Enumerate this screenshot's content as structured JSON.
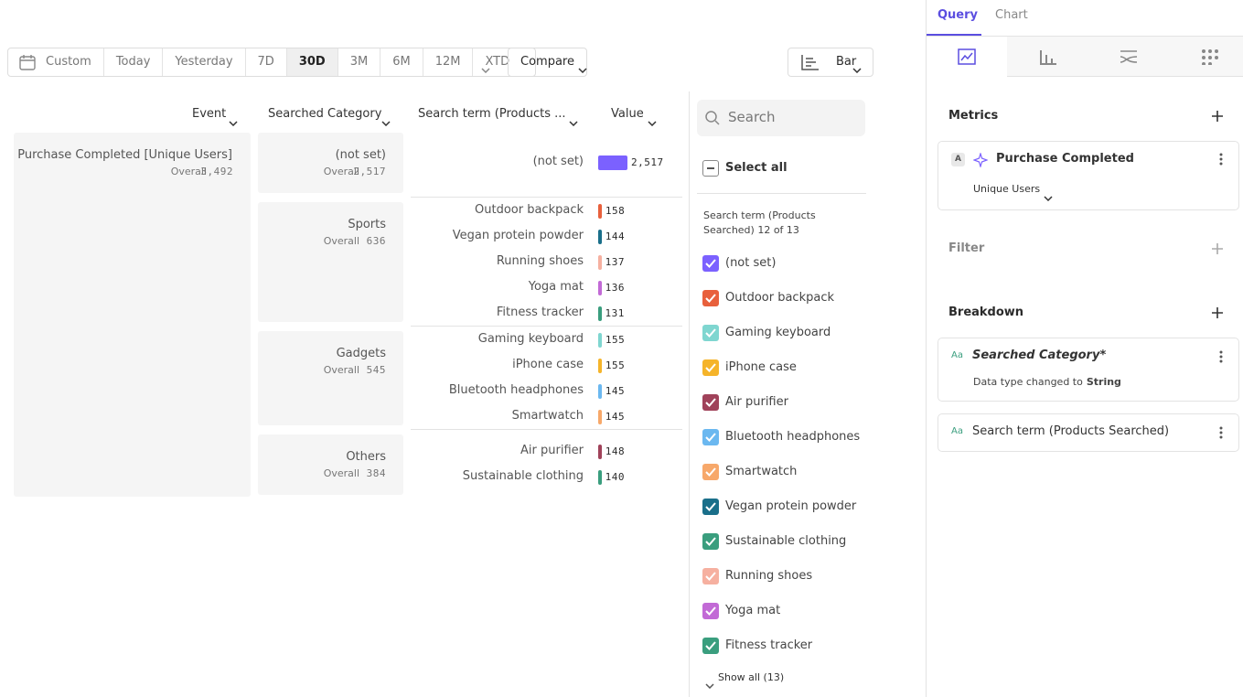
{
  "toolbar": {
    "date_ranges": [
      "Custom",
      "Today",
      "Yesterday",
      "7D",
      "30D",
      "3M",
      "6M",
      "12M",
      "XTD"
    ],
    "selected": "30D",
    "compare": "Compare",
    "chart_type": "Bar"
  },
  "table": {
    "headers": [
      "Event",
      "Searched Category",
      "Search term (Products ...",
      "Value"
    ],
    "event": {
      "name": "Purchase Completed [Unique Users]",
      "overall_label": "Overall",
      "overall": "3,492"
    },
    "groups": [
      {
        "category": "(not set)",
        "overall": "2,517",
        "terms": [
          {
            "name": "(not set)",
            "value": 2517,
            "value_label": "2,517",
            "color": "#7b61ff"
          }
        ]
      },
      {
        "category": "Sports",
        "overall": "636",
        "terms": [
          {
            "name": "Outdoor backpack",
            "value": 158,
            "color": "#e8603c"
          },
          {
            "name": "Vegan protein powder",
            "value": 144,
            "color": "#1a6f8a"
          },
          {
            "name": "Running shoes",
            "value": 137,
            "color": "#f6b0a0"
          },
          {
            "name": "Yoga mat",
            "value": 136,
            "color": "#c26ad6"
          },
          {
            "name": "Fitness tracker",
            "value": 131,
            "color": "#3a9e7e"
          }
        ]
      },
      {
        "category": "Gadgets",
        "overall": "545",
        "terms": [
          {
            "name": "Gaming keyboard",
            "value": 155,
            "color": "#7fd6d0"
          },
          {
            "name": "iPhone case",
            "value": 155,
            "color": "#f5b42a"
          },
          {
            "name": "Bluetooth headphones",
            "value": 145,
            "color": "#6bb8f0"
          },
          {
            "name": "Smartwatch",
            "value": 145,
            "color": "#f7a86a"
          }
        ]
      },
      {
        "category": "Others",
        "overall": "384",
        "terms": [
          {
            "name": "Air purifier",
            "value": 148,
            "color": "#a0425a"
          },
          {
            "name": "Sustainable clothing",
            "value": 140,
            "color": "#3a9e7e"
          }
        ]
      }
    ]
  },
  "filter_panel": {
    "search_placeholder": "Search",
    "select_all": "Select all",
    "heading": "Search term (Products Searched) 12 of 13",
    "items": [
      {
        "label": "(not set)",
        "color": "#7b61ff"
      },
      {
        "label": "Outdoor backpack",
        "color": "#e8603c"
      },
      {
        "label": "Gaming keyboard",
        "color": "#7fd6d0"
      },
      {
        "label": "iPhone case",
        "color": "#f5b42a"
      },
      {
        "label": "Air purifier",
        "color": "#a0425a"
      },
      {
        "label": "Bluetooth headphones",
        "color": "#6bb8f0"
      },
      {
        "label": "Smartwatch",
        "color": "#f7a86a"
      },
      {
        "label": "Vegan protein powder",
        "color": "#1a6f8a"
      },
      {
        "label": "Sustainable clothing",
        "color": "#3a9e7e"
      },
      {
        "label": "Running shoes",
        "color": "#f6b0a0"
      },
      {
        "label": "Yoga mat",
        "color": "#c26ad6"
      },
      {
        "label": "Fitness tracker",
        "color": "#3a9e7e"
      }
    ],
    "show_all": "Show all (13)"
  },
  "sidebar": {
    "tabs": [
      "Query",
      "Chart"
    ],
    "metrics_title": "Metrics",
    "metric": {
      "badge": "A",
      "name": "Purchase Completed",
      "measure": "Unique Users"
    },
    "filter_title": "Filter",
    "breakdown_title": "Breakdown",
    "type_icon": "Aa",
    "breakdowns": [
      {
        "name": "Searched Category*",
        "note": "Data type changed to",
        "note_strong": "String"
      },
      {
        "name": "Search term (Products Searched)"
      }
    ]
  }
}
